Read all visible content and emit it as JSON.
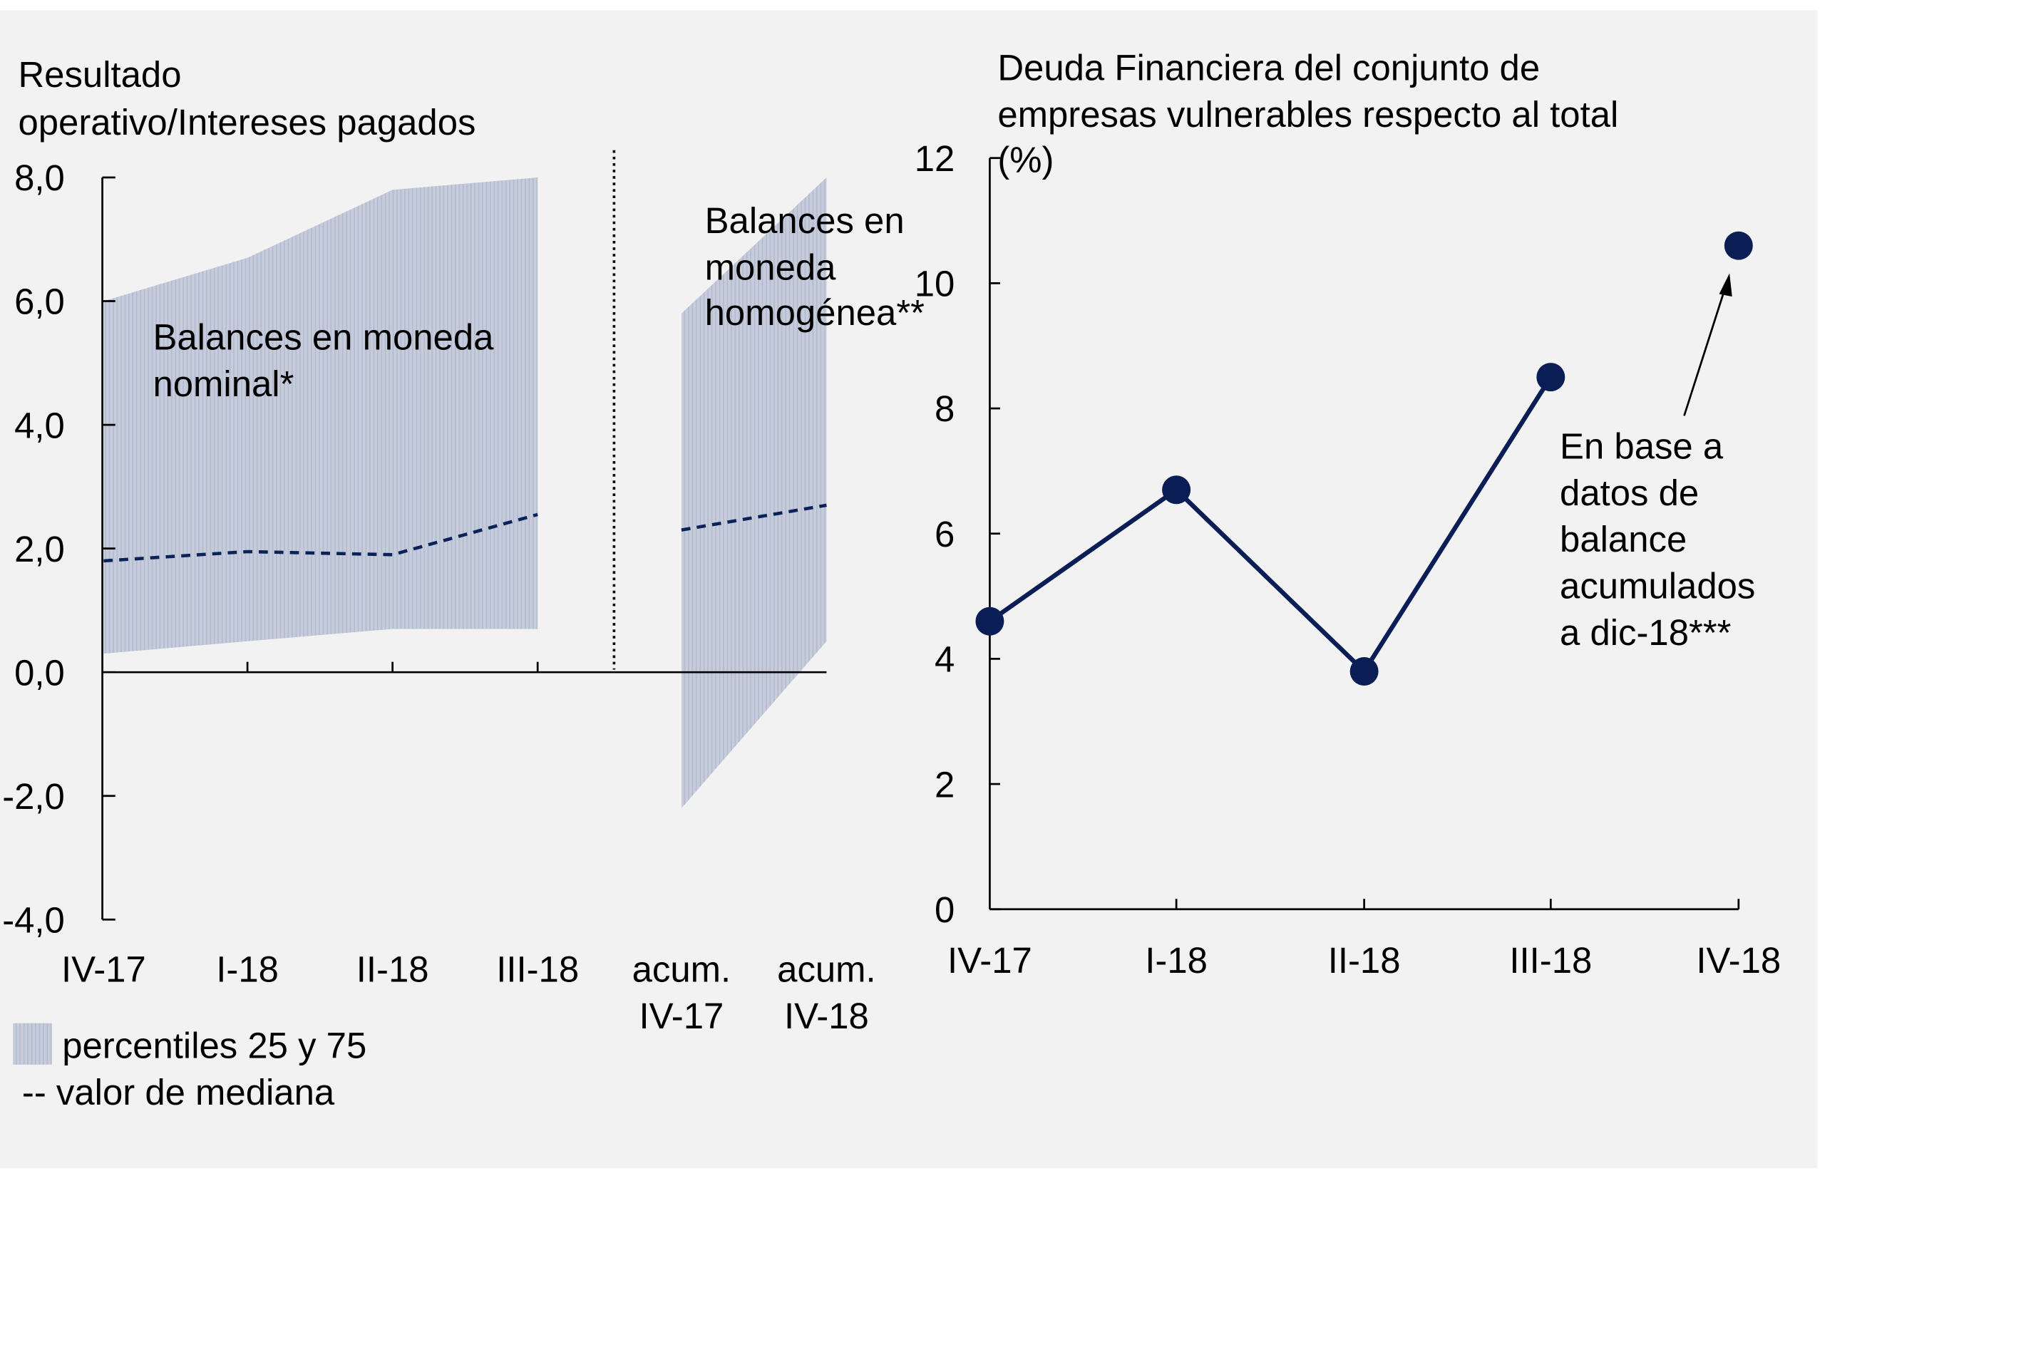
{
  "colors": {
    "band": "#c3c9d9",
    "median": "#0a2257",
    "line": "#0a1e55",
    "background": "#f2f2f2"
  },
  "chart_data": [
    {
      "type": "area",
      "title": [
        "Resultado",
        "operativo/Intereses pagados"
      ],
      "categories": [
        [
          "IV-17"
        ],
        [
          "I-18"
        ],
        [
          "II-18"
        ],
        [
          "III-18"
        ],
        [
          "acum.",
          "IV-17"
        ],
        [
          "acum.",
          "IV-18"
        ]
      ],
      "ylim": [
        -4,
        8
      ],
      "yticks": [
        "8,0",
        "6,0",
        "4,0",
        "2,0",
        "0,0",
        "-2,0",
        "-4,0"
      ],
      "ytick_values": [
        8,
        6,
        4,
        2,
        0,
        -2,
        -4
      ],
      "grid": false,
      "groups": [
        {
          "label": [
            "Balances en moneda",
            "nominal*"
          ],
          "indices": [
            0,
            1,
            2,
            3
          ],
          "p75": [
            6.0,
            6.7,
            7.8,
            8.0
          ],
          "p25": [
            0.3,
            0.5,
            0.7,
            0.7
          ],
          "median": [
            1.8,
            1.95,
            1.9,
            2.55
          ]
        },
        {
          "label": [
            "Balances en",
            "moneda",
            "homogénea**"
          ],
          "indices": [
            4,
            5
          ],
          "p75": [
            5.8,
            8.0
          ],
          "p25": [
            -2.2,
            0.5
          ],
          "median": [
            2.3,
            2.7
          ]
        }
      ],
      "legend": {
        "band": "percentiles 25 y 75",
        "median": "-- valor de mediana",
        "placement": "bottom-left"
      }
    },
    {
      "type": "line",
      "title": [
        "Deuda Financiera del conjunto de",
        "empresas vulnerables respecto al total",
        "(%)"
      ],
      "categories": [
        "IV-17",
        "I-18",
        "II-18",
        "III-18",
        "IV-18"
      ],
      "values": [
        4.6,
        6.7,
        3.8,
        8.5,
        10.6
      ],
      "connected": [
        true,
        true,
        true,
        true,
        false
      ],
      "ylim": [
        0,
        12
      ],
      "yticks": [
        "12",
        "10",
        "8",
        "6",
        "4",
        "2",
        "0"
      ],
      "ytick_values": [
        12,
        10,
        8,
        6,
        4,
        2,
        0
      ],
      "grid": false,
      "annotation": [
        "En base a",
        "datos de",
        "balance",
        "acumulados",
        "a dic-18***"
      ]
    }
  ]
}
